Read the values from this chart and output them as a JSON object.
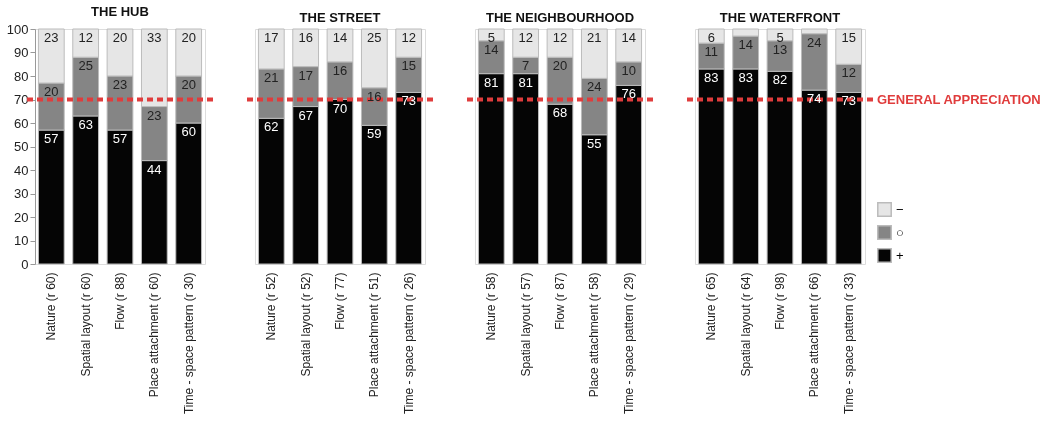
{
  "chart_data": [
    {
      "type": "bar",
      "title": "THE HUB",
      "stacked": true,
      "categories": [
        "Nature (r 60)",
        "Spatial layout (r 60)",
        "Flow (r 88)",
        "Place attachment (r 60)",
        "Time - space pattern (r 30)"
      ],
      "series": [
        {
          "color": "#050505",
          "values": [
            57,
            63,
            57,
            44,
            60
          ]
        },
        {
          "color": "#858585",
          "values": [
            20,
            25,
            23,
            23,
            20
          ]
        },
        {
          "color": "#e6e6e6",
          "values": [
            23,
            12,
            20,
            33,
            20
          ]
        }
      ],
      "ylim": [
        0,
        100
      ],
      "yticks": [
        0,
        10,
        20,
        30,
        40,
        50,
        60,
        70,
        80,
        90,
        100
      ],
      "data_labels": true,
      "ref_lines": [
        {
          "axis": "y",
          "value": 70,
          "color": "#e03c3c",
          "line_style": "dashed"
        }
      ]
    },
    {
      "type": "bar",
      "title": "THE STREET",
      "stacked": true,
      "categories": [
        "Nature (r 52)",
        "Spatial layout (r 52)",
        "Flow (r 77)",
        "Place attachment (r 51)",
        "Time - space pattern (r 26)"
      ],
      "series": [
        {
          "color": "#050505",
          "values": [
            62,
            67,
            70,
            59,
            73
          ]
        },
        {
          "color": "#858585",
          "values": [
            21,
            17,
            16,
            16,
            15
          ]
        },
        {
          "color": "#e6e6e6",
          "values": [
            17,
            16,
            14,
            25,
            12
          ]
        }
      ],
      "ylim": [
        0,
        100
      ],
      "tick_labels": "x",
      "data_labels": true,
      "ref_lines": [
        {
          "axis": "y",
          "value": 70,
          "color": "#e03c3c",
          "line_style": "dashed"
        }
      ]
    },
    {
      "type": "bar",
      "title": "THE NEIGHBOURHOOD",
      "stacked": true,
      "categories": [
        "Nature (r 58)",
        "Spatial layout (r 57)",
        "Flow (r 87)",
        "Place attachment (r 58)",
        "Time - space pattern (r 29)"
      ],
      "series": [
        {
          "color": "#050505",
          "values": [
            81,
            81,
            68,
            55,
            76
          ]
        },
        {
          "color": "#858585",
          "values": [
            14,
            7,
            20,
            24,
            10
          ]
        },
        {
          "color": "#e6e6e6",
          "values": [
            5,
            12,
            12,
            21,
            14
          ]
        }
      ],
      "ylim": [
        0,
        100
      ],
      "tick_labels": "x",
      "data_labels": true,
      "ref_lines": [
        {
          "axis": "y",
          "value": 70,
          "color": "#e03c3c",
          "line_style": "dashed"
        }
      ]
    },
    {
      "type": "bar",
      "title": "THE WATERFRONT",
      "stacked": true,
      "categories": [
        "Nature (r 65)",
        "Spatial layout (r 64)",
        "Flow (r 98)",
        "Place attachment (r 66)",
        "Time - space pattern (r 33)"
      ],
      "series": [
        {
          "name": "+",
          "color": "#050505",
          "values": [
            83,
            83,
            82,
            74,
            73
          ],
          "value_labels": [
            "83",
            "83",
            "82",
            "74",
            "73"
          ]
        },
        {
          "name": "○",
          "color": "#858585",
          "values": [
            11,
            14,
            13,
            24,
            12
          ],
          "value_labels": [
            "11",
            "14",
            "13",
            "24",
            "12"
          ]
        },
        {
          "name": "−",
          "color": "#e6e6e6",
          "values": [
            6,
            3,
            5,
            2,
            15
          ],
          "value_labels": [
            "6",
            null,
            "5",
            null,
            "15"
          ]
        }
      ],
      "ylim": [
        0,
        100
      ],
      "tick_labels": "x",
      "legend": "bottom right",
      "ref_lines": [
        {
          "axis": "y",
          "value": 70,
          "label": "GENERAL APPRECIATION",
          "color": "#e03c3c",
          "line_style": "dashed"
        }
      ]
    }
  ]
}
